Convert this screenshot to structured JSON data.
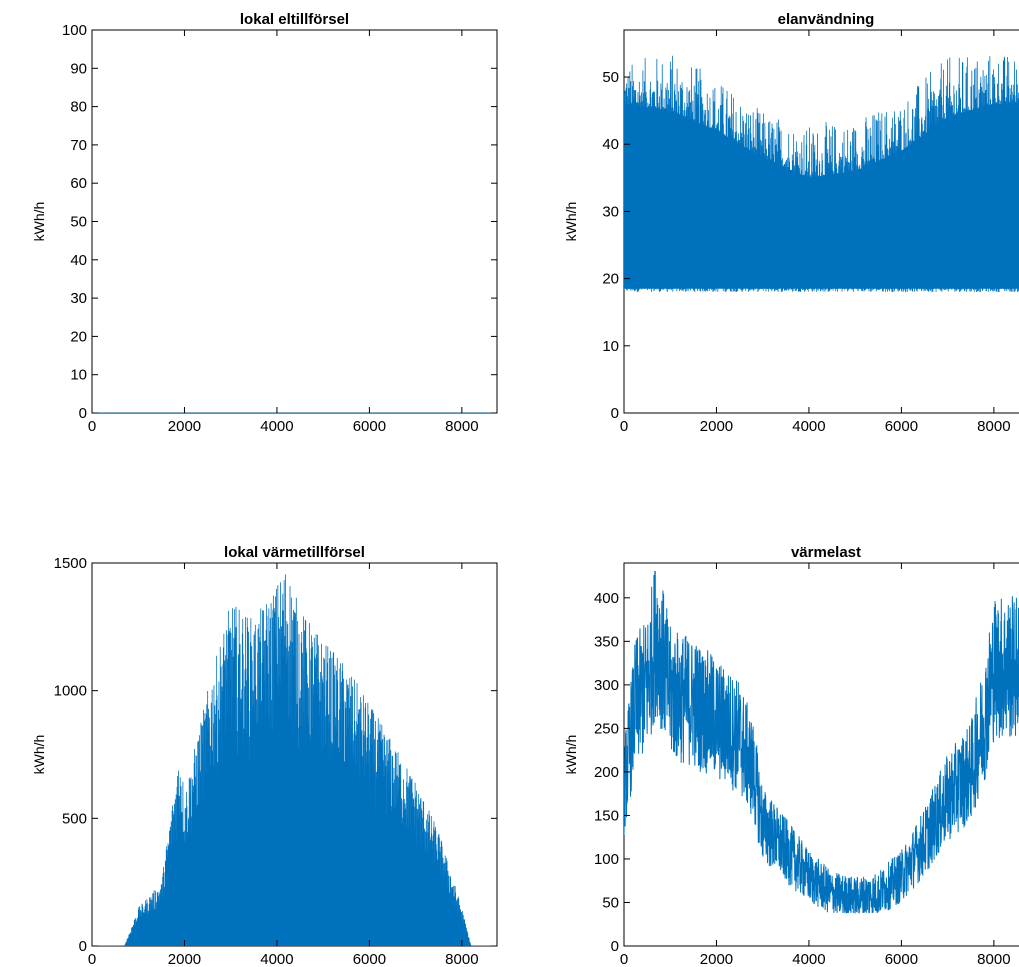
{
  "figure": {
    "line_color": "#0072BD"
  },
  "chart_data": [
    {
      "type": "line",
      "title": "lokal eltillförsel",
      "xlabel": "",
      "ylabel": "kWh/h",
      "xlim": [
        0,
        8760
      ],
      "ylim": [
        0,
        100
      ],
      "xticks": [
        0,
        2000,
        4000,
        6000,
        8000
      ],
      "yticks": [
        0,
        10,
        20,
        30,
        40,
        50,
        60,
        70,
        80,
        90,
        100
      ],
      "series": [
        {
          "profile": "flat",
          "x": [
            0,
            8760
          ],
          "y": [
            0,
            0
          ]
        }
      ]
    },
    {
      "type": "line",
      "title": "elanvändning",
      "xlabel": "",
      "ylabel": "kWh/h",
      "xlim": [
        0,
        8760
      ],
      "ylim": [
        0,
        57
      ],
      "xticks": [
        0,
        2000,
        4000,
        6000,
        8000
      ],
      "yticks": [
        0,
        10,
        20,
        30,
        40,
        50
      ],
      "series": [
        {
          "profile": "band",
          "x": [
            0,
            1000,
            2000,
            3000,
            4000,
            5000,
            6000,
            7000,
            8000,
            8760
          ],
          "min": [
            18,
            18,
            18,
            18,
            18,
            18,
            18,
            18,
            18,
            18
          ],
          "max": [
            46,
            45,
            42,
            38,
            35,
            36,
            39,
            44,
            46,
            46
          ],
          "peak": [
            52,
            54,
            50,
            45,
            43,
            44,
            47,
            53,
            54,
            53
          ]
        }
      ]
    },
    {
      "type": "line",
      "title": "lokal värmetillförsel",
      "xlabel": "",
      "ylabel": "kWh/h",
      "xlim": [
        0,
        8760
      ],
      "ylim": [
        0,
        1500
      ],
      "xticks": [
        0,
        2000,
        4000,
        6000,
        8000
      ],
      "yticks": [
        0,
        500,
        1000,
        1500
      ],
      "series": [
        {
          "profile": "spikes",
          "x": [
            0,
            700,
            1000,
            1500,
            1900,
            2000,
            2500,
            3000,
            3500,
            4000,
            4200,
            4500,
            5000,
            5500,
            6000,
            6500,
            7000,
            7500,
            8000,
            8200,
            8760
          ],
          "y": [
            0,
            0,
            150,
            250,
            780,
            600,
            1000,
            1350,
            1280,
            1420,
            1500,
            1320,
            1200,
            1100,
            950,
            800,
            650,
            450,
            150,
            0,
            0
          ]
        }
      ]
    },
    {
      "type": "line",
      "title": "värmelast",
      "xlabel": "",
      "ylabel": "kWh/h",
      "xlim": [
        0,
        8760
      ],
      "ylim": [
        0,
        440
      ],
      "xticks": [
        0,
        2000,
        4000,
        6000,
        8000
      ],
      "yticks": [
        0,
        50,
        100,
        150,
        200,
        250,
        300,
        350,
        400
      ],
      "series": [
        {
          "profile": "noisy",
          "x": [
            0,
            250,
            500,
            700,
            1000,
            1500,
            2000,
            2500,
            2800,
            3000,
            3500,
            4000,
            4500,
            5000,
            5500,
            6000,
            6500,
            7000,
            7500,
            7800,
            8000,
            8500,
            8760
          ],
          "y": [
            180,
            280,
            300,
            360,
            290,
            280,
            260,
            240,
            200,
            140,
            110,
            80,
            60,
            55,
            60,
            80,
            120,
            170,
            200,
            260,
            320,
            320,
            280
          ]
        }
      ]
    }
  ]
}
